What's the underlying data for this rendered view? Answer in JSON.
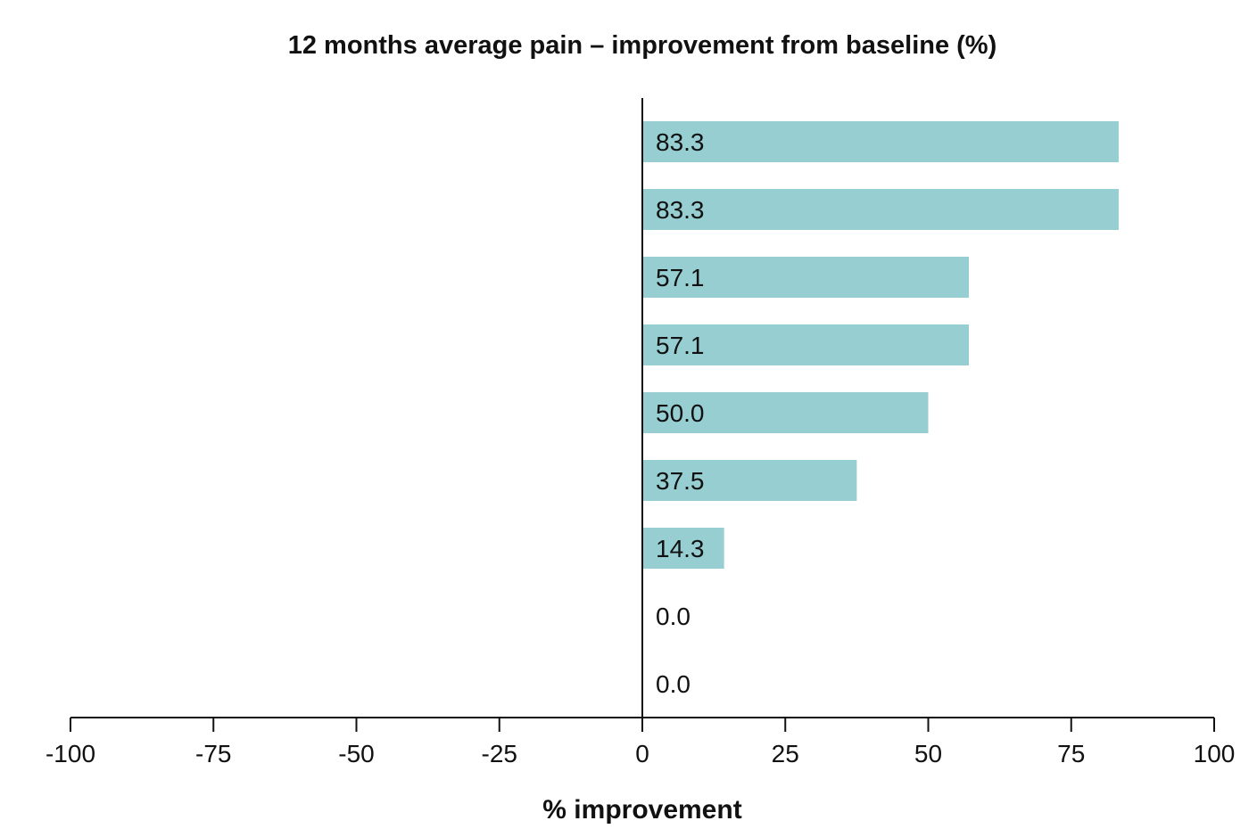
{
  "chart_data": {
    "type": "bar",
    "orientation": "horizontal",
    "title": "12 months average pain – improvement from baseline (%)",
    "xlabel": "% improvement",
    "ylabel": "",
    "xlim": [
      -100,
      100
    ],
    "x_ticks": [
      "-100",
      "-75",
      "-50",
      "-25",
      "0",
      "25",
      "50",
      "75",
      "100"
    ],
    "x_tick_values": [
      -100,
      -75,
      -50,
      -25,
      0,
      25,
      50,
      75,
      100
    ],
    "values": [
      83.3,
      83.3,
      57.1,
      57.1,
      50.0,
      37.5,
      14.3,
      0.0,
      0.0
    ],
    "value_labels": [
      "83.3",
      "83.3",
      "57.1",
      "57.1",
      "50.0",
      "37.5",
      "14.3",
      "0.0",
      "0.0"
    ],
    "bar_color": "#96ced2",
    "grid": false,
    "legend": "none"
  }
}
